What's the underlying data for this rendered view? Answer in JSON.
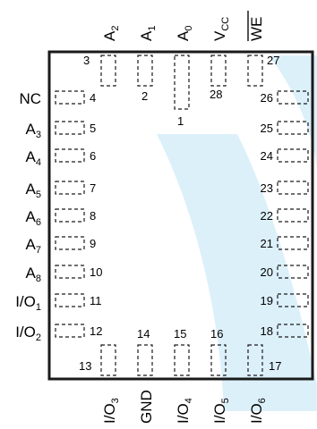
{
  "package": {
    "left_pins": [
      {
        "label": "NC",
        "number": "4"
      },
      {
        "label": "A3",
        "number": "5"
      },
      {
        "label": "A4",
        "number": "6"
      },
      {
        "label": "A5",
        "number": "7"
      },
      {
        "label": "A6",
        "number": "8"
      },
      {
        "label": "A7",
        "number": "9"
      },
      {
        "label": "A8",
        "number": "10"
      },
      {
        "label": "I/O1",
        "number": "11"
      },
      {
        "label": "I/O2",
        "number": "12"
      }
    ],
    "right_pins": [
      {
        "number": "26"
      },
      {
        "number": "25"
      },
      {
        "number": "24"
      },
      {
        "number": "23"
      },
      {
        "number": "22"
      },
      {
        "number": "21"
      },
      {
        "number": "20"
      },
      {
        "number": "19"
      },
      {
        "number": "18"
      }
    ],
    "top_pins": [
      {
        "label": "A2",
        "number": "3"
      },
      {
        "label": "A1",
        "number": "2"
      },
      {
        "label": "A0",
        "number": "1"
      },
      {
        "label": "VCC",
        "number": "28"
      },
      {
        "label": "WE",
        "number": "27"
      }
    ],
    "bottom_pins": [
      {
        "label": "I/O3",
        "number": "13"
      },
      {
        "label": "GND",
        "number": "14"
      },
      {
        "label": "I/O4",
        "number": "15"
      },
      {
        "label": "I/O5",
        "number": "16"
      },
      {
        "label": "I/O6",
        "number": "17"
      }
    ],
    "colors": {
      "outline": "#1a1a1a",
      "watermark": "#dcf0fa"
    }
  }
}
